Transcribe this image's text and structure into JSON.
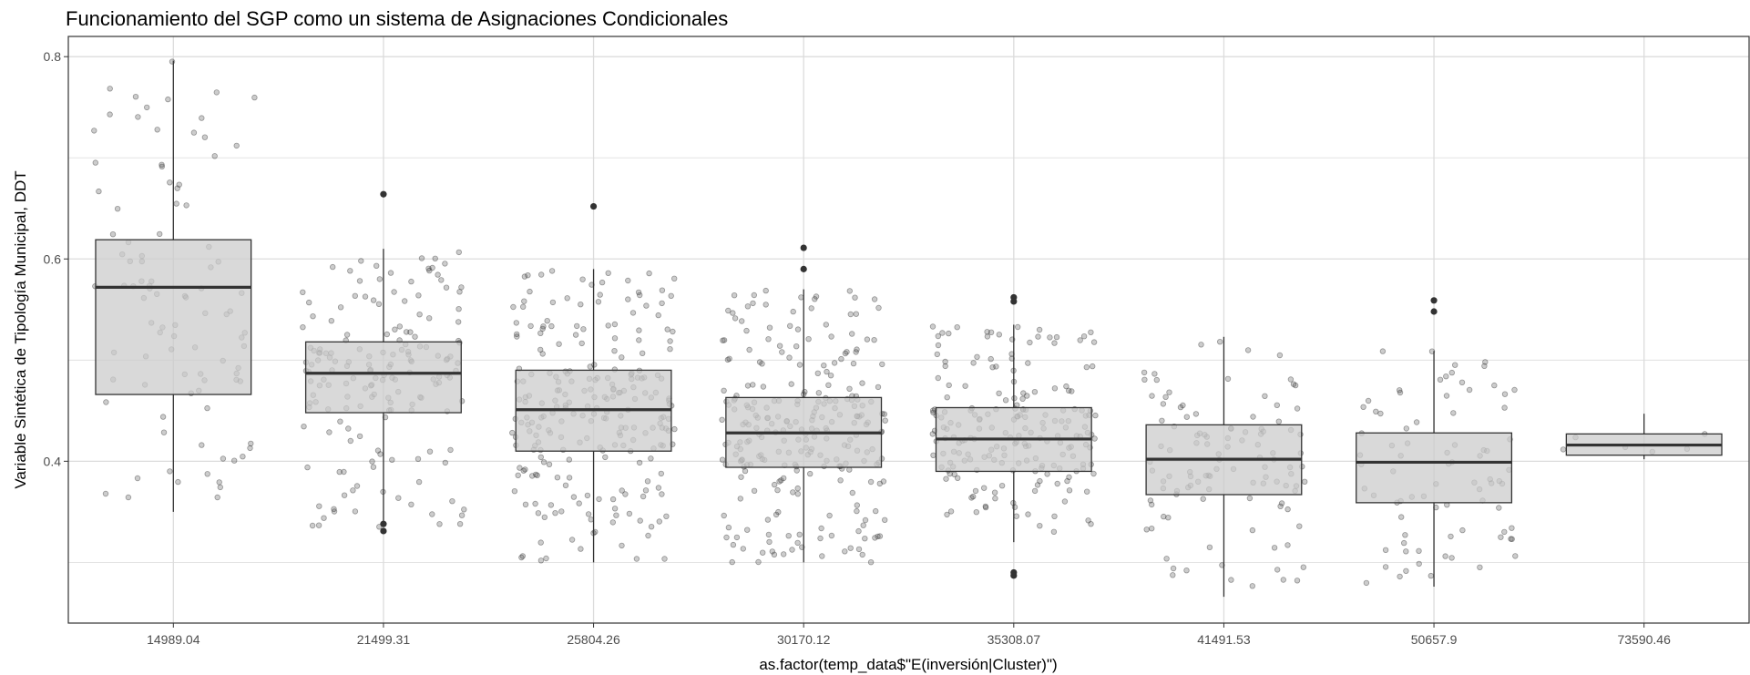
{
  "chart_data": {
    "type": "boxplot",
    "title": "Funcionamiento del SGP como un sistema de Asignaciones Condicionales",
    "xlabel": "as.factor(temp_data$\"E(inversión|Cluster)\")",
    "ylabel": "Variable Sintética de Tipología Municipal, DDT",
    "ylim": [
      0.24,
      0.82
    ],
    "yticks": [
      {
        "value": 0.4,
        "label": "0.4"
      },
      {
        "value": 0.6,
        "label": "0.6"
      },
      {
        "value": 0.8,
        "label": "0.8"
      }
    ],
    "grid": true,
    "categories": [
      "14989.04",
      "21499.31",
      "25804.26",
      "30170.12",
      "35308.07",
      "41491.53",
      "50657.9",
      "73590.46"
    ],
    "boxes": [
      {
        "category": "14989.04",
        "whisker_low": 0.35,
        "q1": 0.466,
        "median": 0.572,
        "q3": 0.619,
        "whisker_high": 0.796,
        "outliers": [],
        "n_points": 95
      },
      {
        "category": "21499.31",
        "whisker_low": 0.335,
        "q1": 0.448,
        "median": 0.487,
        "q3": 0.518,
        "whisker_high": 0.61,
        "outliers": [
          0.664,
          0.338,
          0.331
        ],
        "n_points": 170
      },
      {
        "category": "25804.26",
        "whisker_low": 0.3,
        "q1": 0.41,
        "median": 0.451,
        "q3": 0.49,
        "whisker_high": 0.59,
        "outliers": [
          0.652
        ],
        "n_points": 240
      },
      {
        "category": "30170.12",
        "whisker_low": 0.3,
        "q1": 0.394,
        "median": 0.428,
        "q3": 0.463,
        "whisker_high": 0.57,
        "outliers": [
          0.611,
          0.59
        ],
        "n_points": 260
      },
      {
        "category": "35308.07",
        "whisker_low": 0.32,
        "q1": 0.39,
        "median": 0.422,
        "q3": 0.453,
        "whisker_high": 0.535,
        "outliers": [
          0.562,
          0.558,
          0.29,
          0.287
        ],
        "n_points": 200
      },
      {
        "category": "41491.53",
        "whisker_low": 0.266,
        "q1": 0.367,
        "median": 0.402,
        "q3": 0.436,
        "whisker_high": 0.523,
        "outliers": [],
        "n_points": 110
      },
      {
        "category": "50657.9",
        "whisker_low": 0.276,
        "q1": 0.359,
        "median": 0.399,
        "q3": 0.428,
        "whisker_high": 0.509,
        "outliers": [
          0.559,
          0.548
        ],
        "n_points": 80
      },
      {
        "category": "73590.46",
        "whisker_low": 0.402,
        "q1": 0.406,
        "median": 0.416,
        "q3": 0.427,
        "whisker_high": 0.447,
        "outliers": [],
        "n_points": 6
      }
    ]
  },
  "colors": {
    "box_fill": "#cccccc",
    "box_stroke": "#333333",
    "jitter_point": "#333333",
    "outlier": "#333333",
    "grid": "#dcdcdc",
    "panel_border": "#333333"
  }
}
